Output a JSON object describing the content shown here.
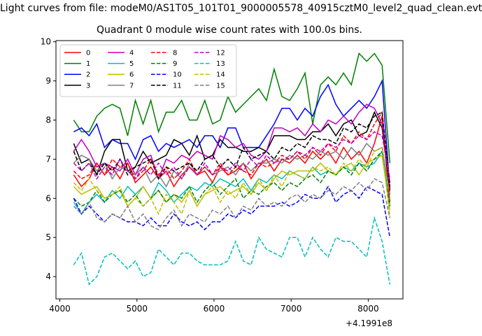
{
  "figure": {
    "suptitle": "Light curves from file: modeM0/AS1T05_101T01_9000005578_40915cztM0_level2_quad_clean.evt",
    "title": "Quadrant 0 module wise count rates with 100.0s bins."
  },
  "chart_data": {
    "type": "line",
    "title": "Quadrant 0 module wise count rates with 100.0s bins.",
    "x_offset_label": "+4.1991e8",
    "xlim": [
      3950,
      8450
    ],
    "ylim": [
      3.43,
      10.03
    ],
    "xticks": [
      4000,
      5000,
      6000,
      7000,
      8000
    ],
    "xtick_labels": [
      "4000",
      "5000",
      "6000",
      "7000",
      "8000"
    ],
    "yticks": [
      4,
      5,
      6,
      7,
      8,
      9,
      10
    ],
    "ytick_labels": [
      "4",
      "5",
      "6",
      "7",
      "8",
      "9",
      "10"
    ],
    "grid": false,
    "legend": {
      "placement": "upper-left",
      "ncol": 4
    },
    "x": [
      4180,
      4280,
      4380,
      4480,
      4580,
      4680,
      4780,
      4880,
      4980,
      5080,
      5180,
      5280,
      5380,
      5480,
      5580,
      5680,
      5780,
      5880,
      5980,
      6080,
      6180,
      6280,
      6380,
      6480,
      6580,
      6680,
      6780,
      6880,
      6980,
      7080,
      7180,
      7280,
      7380,
      7480,
      7580,
      7680,
      7780,
      7880,
      7980,
      8080,
      8180,
      8280
    ],
    "series": [
      {
        "name": "0",
        "color": "#ff0000",
        "style": "solid",
        "values": [
          6.6,
          6.3,
          6.5,
          6.9,
          6.6,
          6.8,
          6.5,
          6.9,
          6.4,
          6.6,
          6.8,
          6.5,
          6.7,
          6.3,
          6.6,
          6.8,
          6.6,
          6.7,
          6.4,
          6.8,
          6.6,
          6.7,
          6.9,
          6.5,
          6.8,
          7.0,
          6.7,
          7.0,
          6.9,
          7.1,
          6.9,
          7.2,
          7.0,
          7.2,
          6.9,
          7.3,
          7.0,
          7.2,
          6.9,
          7.4,
          8.1,
          5.9
        ]
      },
      {
        "name": "1",
        "color": "#008000",
        "style": "solid",
        "values": [
          8.0,
          7.7,
          7.7,
          8.1,
          8.3,
          8.4,
          8.3,
          7.6,
          8.5,
          7.9,
          8.5,
          7.7,
          8.2,
          8.2,
          8.5,
          8.0,
          8.0,
          8.5,
          7.9,
          8.0,
          8.6,
          8.2,
          8.4,
          8.6,
          8.8,
          8.5,
          9.3,
          8.6,
          8.5,
          8.8,
          9.2,
          7.9,
          8.9,
          9.1,
          8.9,
          9.2,
          8.9,
          9.7,
          9.5,
          9.7,
          9.4,
          6.9
        ]
      },
      {
        "name": "2",
        "color": "#0000ff",
        "style": "solid",
        "values": [
          7.7,
          7.8,
          7.6,
          7.9,
          7.3,
          7.5,
          7.4,
          7.4,
          7.0,
          7.5,
          7.6,
          7.2,
          7.4,
          7.3,
          7.4,
          7.5,
          7.3,
          7.6,
          7.6,
          7.3,
          7.8,
          7.8,
          7.3,
          7.3,
          7.3,
          7.6,
          7.9,
          8.3,
          8.3,
          8.0,
          8.3,
          8.1,
          8.6,
          8.9,
          8.4,
          8.1,
          8.3,
          8.5,
          8.3,
          8.6,
          9.0,
          6.2
        ]
      },
      {
        "name": "3",
        "color": "#000000",
        "style": "solid",
        "values": [
          7.4,
          6.9,
          7.0,
          6.6,
          7.2,
          7.5,
          7.5,
          6.7,
          6.8,
          7.2,
          6.9,
          7.0,
          7.1,
          7.5,
          7.4,
          7.1,
          7.6,
          7.0,
          7.1,
          7.5,
          7.3,
          7.3,
          7.2,
          7.2,
          7.3,
          7.2,
          7.6,
          7.6,
          7.6,
          7.5,
          7.5,
          7.7,
          7.7,
          7.9,
          7.6,
          7.9,
          8.0,
          7.6,
          7.7,
          8.2,
          7.8,
          6.2
        ]
      },
      {
        "name": "4",
        "color": "#bf00bf",
        "style": "solid",
        "values": [
          7.2,
          7.5,
          7.2,
          6.8,
          6.9,
          6.8,
          6.7,
          7.0,
          6.6,
          7.0,
          7.1,
          6.5,
          7.0,
          6.9,
          7.1,
          7.0,
          7.2,
          7.1,
          7.0,
          7.6,
          7.5,
          7.3,
          7.4,
          7.1,
          7.0,
          7.2,
          7.8,
          7.8,
          7.7,
          7.8,
          7.6,
          7.9,
          7.7,
          8.0,
          7.9,
          8.1,
          7.9,
          8.2,
          8.4,
          8.3,
          7.9,
          6.4
        ]
      },
      {
        "name": "5",
        "color": "#00bfbf",
        "style": "solid",
        "values": [
          5.9,
          5.6,
          5.9,
          6.1,
          5.9,
          6.2,
          6.0,
          6.3,
          6.1,
          6.3,
          6.0,
          6.4,
          6.2,
          5.9,
          6.1,
          6.3,
          6.2,
          6.4,
          6.3,
          6.5,
          6.4,
          6.3,
          6.5,
          6.2,
          6.5,
          6.4,
          6.6,
          6.5,
          6.7,
          6.6,
          6.5,
          6.8,
          6.6,
          6.7,
          6.6,
          6.8,
          6.7,
          6.9,
          6.8,
          6.9,
          7.2,
          5.8
        ]
      },
      {
        "name": "6",
        "color": "#bfbf00",
        "style": "solid",
        "values": [
          6.3,
          6.1,
          6.2,
          6.3,
          6.0,
          6.1,
          6.2,
          5.8,
          6.0,
          6.3,
          6.0,
          6.2,
          5.9,
          6.1,
          5.9,
          6.2,
          5.8,
          6.1,
          6.2,
          6.3,
          6.1,
          6.2,
          6.3,
          6.1,
          6.4,
          6.2,
          6.5,
          6.7,
          6.6,
          6.7,
          6.7,
          6.7,
          6.9,
          6.7,
          6.6,
          6.8,
          6.9,
          6.6,
          6.9,
          7.0,
          7.1,
          5.7
        ]
      },
      {
        "name": "7",
        "color": "#808080",
        "style": "solid",
        "values": [
          6.9,
          7.1,
          7.0,
          6.7,
          6.9,
          6.5,
          6.8,
          6.7,
          6.6,
          6.8,
          6.4,
          6.6,
          6.3,
          6.7,
          6.5,
          6.9,
          6.6,
          6.8,
          6.6,
          6.7,
          6.8,
          6.6,
          6.9,
          6.7,
          6.9,
          6.9,
          7.0,
          6.9,
          7.1,
          7.0,
          7.1,
          7.0,
          7.2,
          7.1,
          7.2,
          7.0,
          7.3,
          7.1,
          7.4,
          7.2,
          7.3,
          6.1
        ]
      },
      {
        "name": "8",
        "color": "#ff0000",
        "style": "dashed",
        "values": [
          6.7,
          6.5,
          6.6,
          6.9,
          6.6,
          7.0,
          6.8,
          6.9,
          6.5,
          6.7,
          7.0,
          6.6,
          6.8,
          6.5,
          6.7,
          7.0,
          6.6,
          6.8,
          6.6,
          6.9,
          6.6,
          6.8,
          6.7,
          6.6,
          6.9,
          6.8,
          6.9,
          7.1,
          7.0,
          7.2,
          7.0,
          7.3,
          7.1,
          7.4,
          7.2,
          7.6,
          7.4,
          7.7,
          7.5,
          7.9,
          8.2,
          6.1
        ]
      },
      {
        "name": "9",
        "color": "#008000",
        "style": "dashed",
        "values": [
          6.0,
          5.8,
          5.9,
          6.2,
          5.9,
          6.1,
          6.2,
          5.9,
          6.1,
          5.8,
          6.0,
          6.2,
          5.9,
          6.1,
          6.0,
          6.3,
          5.9,
          6.2,
          6.4,
          6.1,
          6.3,
          6.5,
          6.0,
          6.2,
          6.1,
          6.3,
          6.4,
          6.2,
          6.4,
          6.3,
          6.5,
          6.6,
          6.4,
          6.7,
          6.6,
          6.8,
          6.6,
          6.9,
          6.7,
          7.0,
          7.2,
          5.8
        ]
      },
      {
        "name": "10",
        "color": "#0000ff",
        "style": "dashed",
        "values": [
          6.0,
          5.6,
          5.8,
          5.6,
          5.4,
          5.6,
          5.5,
          5.4,
          5.4,
          5.3,
          5.5,
          5.3,
          5.3,
          5.6,
          5.4,
          5.3,
          5.4,
          5.2,
          5.4,
          5.4,
          5.6,
          5.5,
          5.7,
          5.6,
          5.8,
          5.8,
          5.8,
          5.9,
          5.8,
          5.9,
          6.1,
          6.0,
          6.0,
          6.3,
          5.9,
          6.1,
          6.2,
          6.0,
          6.3,
          6.2,
          6.1,
          5.0
        ]
      },
      {
        "name": "11",
        "color": "#000000",
        "style": "dashed",
        "values": [
          7.2,
          6.7,
          6.9,
          6.6,
          6.9,
          6.7,
          7.0,
          6.6,
          6.8,
          6.9,
          7.0,
          6.5,
          6.8,
          6.7,
          6.8,
          6.9,
          6.7,
          7.0,
          7.1,
          6.8,
          7.0,
          6.8,
          7.3,
          7.0,
          7.1,
          7.2,
          7.0,
          7.3,
          7.2,
          7.4,
          7.3,
          7.6,
          7.5,
          7.5,
          7.4,
          7.8,
          7.7,
          7.9,
          7.8,
          8.1,
          8.2,
          6.3
        ]
      },
      {
        "name": "12",
        "color": "#bf00bf",
        "style": "dashed",
        "values": [
          6.9,
          6.7,
          6.9,
          6.5,
          6.8,
          6.6,
          7.0,
          6.7,
          6.5,
          6.8,
          6.6,
          6.9,
          6.6,
          6.8,
          6.5,
          6.8,
          6.6,
          6.9,
          6.6,
          6.8,
          6.7,
          6.9,
          6.7,
          7.0,
          6.8,
          7.1,
          6.9,
          7.0,
          7.0,
          7.2,
          7.1,
          7.3,
          7.2,
          7.4,
          7.3,
          7.5,
          7.4,
          7.6,
          7.5,
          7.7,
          7.6,
          6.5
        ]
      },
      {
        "name": "13",
        "color": "#00bfbf",
        "style": "dashed",
        "values": [
          4.3,
          4.6,
          3.8,
          4.0,
          4.5,
          4.6,
          4.4,
          4.2,
          4.4,
          4.0,
          4.1,
          4.7,
          4.5,
          4.3,
          4.6,
          4.6,
          4.4,
          4.3,
          4.3,
          4.3,
          4.4,
          4.9,
          4.4,
          4.3,
          5.0,
          4.7,
          4.6,
          4.5,
          5.0,
          5.0,
          4.5,
          5.0,
          4.7,
          4.5,
          5.0,
          4.9,
          4.9,
          4.7,
          4.5,
          5.5,
          4.9,
          3.8
        ]
      },
      {
        "name": "14",
        "color": "#bfbf00",
        "style": "dashed",
        "values": [
          6.4,
          6.2,
          6.5,
          6.2,
          6.0,
          6.1,
          6.3,
          5.8,
          6.0,
          5.8,
          6.0,
          5.6,
          6.1,
          5.9,
          5.6,
          6.2,
          5.8,
          6.1,
          6.3,
          5.9,
          6.2,
          6.0,
          6.4,
          6.1,
          6.5,
          6.2,
          6.6,
          6.3,
          6.7,
          6.6,
          6.5,
          6.8,
          6.7,
          6.8,
          6.6,
          6.9,
          6.7,
          7.0,
          6.8,
          7.2,
          7.3,
          5.5
        ]
      },
      {
        "name": "15",
        "color": "#808080",
        "style": "dashed",
        "values": [
          5.8,
          5.6,
          5.9,
          5.5,
          5.4,
          5.6,
          5.5,
          5.8,
          5.4,
          5.6,
          5.3,
          5.2,
          5.5,
          5.7,
          5.3,
          5.6,
          5.5,
          5.4,
          5.7,
          5.6,
          5.8,
          5.5,
          5.8,
          5.7,
          6.0,
          5.8,
          5.9,
          5.8,
          6.0,
          6.1,
          5.9,
          6.1,
          6.0,
          6.2,
          6.1,
          6.3,
          6.2,
          6.4,
          6.2,
          6.5,
          6.4,
          5.5
        ]
      }
    ]
  }
}
